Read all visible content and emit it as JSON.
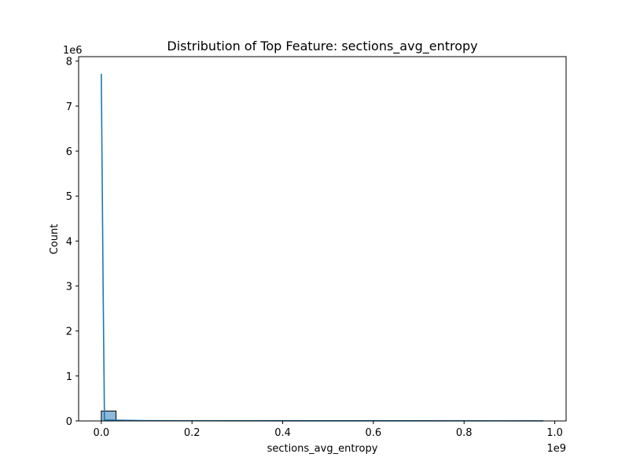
{
  "chart_data": {
    "type": "bar",
    "title": "Distribution of Top Feature: sections_avg_entropy",
    "xlabel": "sections_avg_entropy",
    "ylabel": "Count",
    "x_offset_label": "1e9",
    "y_offset_label": "1e6",
    "xlim": [
      -0.05,
      1.025
    ],
    "ylim": [
      0,
      8.1
    ],
    "x_ticks": [
      {
        "value": 0.0,
        "label": "0.0"
      },
      {
        "value": 0.2,
        "label": "0.2"
      },
      {
        "value": 0.4,
        "label": "0.4"
      },
      {
        "value": 0.6,
        "label": "0.6"
      },
      {
        "value": 0.8,
        "label": "0.8"
      },
      {
        "value": 1.0,
        "label": "1.0"
      }
    ],
    "y_ticks": [
      {
        "value": 0,
        "label": "0"
      },
      {
        "value": 1,
        "label": "1"
      },
      {
        "value": 2,
        "label": "2"
      },
      {
        "value": 3,
        "label": "3"
      },
      {
        "value": 4,
        "label": "4"
      },
      {
        "value": 5,
        "label": "5"
      },
      {
        "value": 6,
        "label": "6"
      },
      {
        "value": 7,
        "label": "7"
      },
      {
        "value": 8,
        "label": "8"
      }
    ],
    "bins": [
      {
        "x0": 0.0,
        "x1": 0.0325,
        "count": 0.22
      }
    ],
    "kde": [
      [
        0.0,
        7.72
      ],
      [
        0.004,
        3.0
      ],
      [
        0.007,
        0.02
      ],
      [
        0.1,
        0.005
      ],
      [
        0.5,
        0.003
      ],
      [
        0.975,
        0.002
      ]
    ],
    "colors": {
      "bar_fill": "#8db8d8",
      "bar_edge": "#000000",
      "line": "#1f77b4"
    },
    "grid": false,
    "legend": "none"
  }
}
